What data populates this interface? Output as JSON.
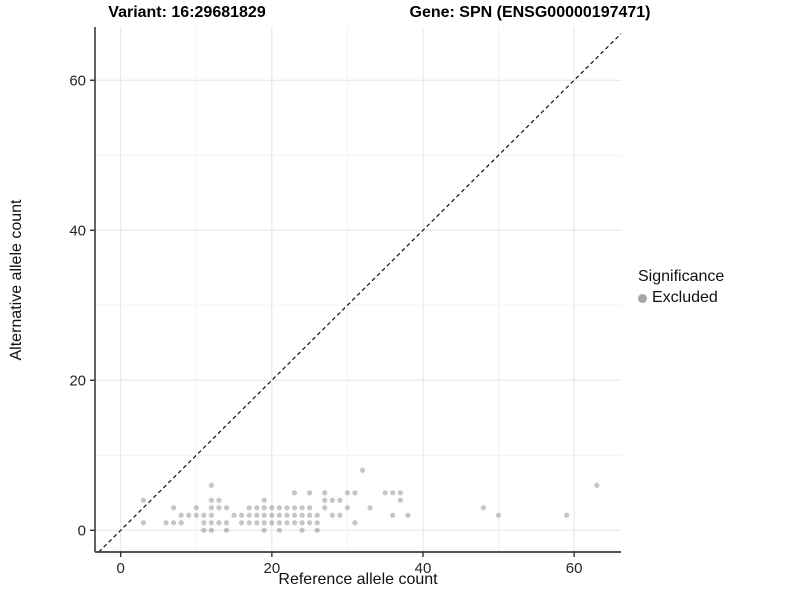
{
  "titles": {
    "variant": "Variant: 16:29681829",
    "gene": "Gene: SPN (ENSG00000197471)"
  },
  "legend": {
    "title": "Significance",
    "items": [
      {
        "label": "Excluded",
        "color": "#a6a6a6"
      }
    ]
  },
  "chart_data": {
    "type": "scatter",
    "title_left": "Variant: 16:29681829",
    "title_right": "Gene: SPN (ENSG00000197471)",
    "xlabel": "Reference allele count",
    "ylabel": "Alternative allele count",
    "xlim": [
      -3.4,
      66.2
    ],
    "ylim": [
      -2.9,
      67.1
    ],
    "x_major_ticks": [
      0,
      20,
      40,
      60
    ],
    "x_minor_ticks": [
      10,
      30,
      50
    ],
    "y_major_ticks": [
      0,
      20,
      40,
      60
    ],
    "y_minor_ticks": [
      10,
      30,
      50
    ],
    "grid": true,
    "legend_position": "right",
    "identity_line": {
      "equation": "y = x",
      "style": "dashed",
      "color": "#111111"
    },
    "point_color": "rgba(51,51,51,0.28)",
    "point_radius": 2.6,
    "major_grid_color": "#e5e5e5",
    "minor_grid_color": "#f2f2f2",
    "axis_line_color": "#3c3c3c",
    "tick_label_color": "#262626",
    "series": [
      {
        "name": "Excluded",
        "points": [
          [
            3,
            4
          ],
          [
            3,
            1
          ],
          [
            6,
            1
          ],
          [
            7,
            1
          ],
          [
            7,
            3
          ],
          [
            8,
            2
          ],
          [
            8,
            1
          ],
          [
            9,
            2
          ],
          [
            10,
            3
          ],
          [
            10,
            2
          ],
          [
            11,
            2
          ],
          [
            11,
            1
          ],
          [
            11,
            0
          ],
          [
            12,
            6
          ],
          [
            12,
            4
          ],
          [
            12,
            3
          ],
          [
            12,
            2
          ],
          [
            12,
            1
          ],
          [
            12,
            0
          ],
          [
            13,
            4
          ],
          [
            13,
            3
          ],
          [
            13,
            1
          ],
          [
            14,
            3
          ],
          [
            14,
            1
          ],
          [
            14,
            0
          ],
          [
            15,
            2
          ],
          [
            16,
            2
          ],
          [
            16,
            1
          ],
          [
            17,
            3
          ],
          [
            17,
            2
          ],
          [
            17,
            1
          ],
          [
            18,
            3
          ],
          [
            18,
            2
          ],
          [
            18,
            1
          ],
          [
            19,
            4
          ],
          [
            19,
            3
          ],
          [
            19,
            2
          ],
          [
            19,
            1
          ],
          [
            19,
            0
          ],
          [
            20,
            3
          ],
          [
            20,
            2
          ],
          [
            20,
            1
          ],
          [
            21,
            3
          ],
          [
            21,
            2
          ],
          [
            21,
            1
          ],
          [
            21,
            0
          ],
          [
            22,
            3
          ],
          [
            22,
            2
          ],
          [
            22,
            1
          ],
          [
            23,
            5
          ],
          [
            23,
            3
          ],
          [
            23,
            2
          ],
          [
            23,
            1
          ],
          [
            24,
            3
          ],
          [
            24,
            2
          ],
          [
            24,
            1
          ],
          [
            24,
            0
          ],
          [
            25,
            5
          ],
          [
            25,
            3
          ],
          [
            25,
            2
          ],
          [
            25,
            1
          ],
          [
            26,
            2
          ],
          [
            26,
            1
          ],
          [
            26,
            0
          ],
          [
            27,
            5
          ],
          [
            27,
            4
          ],
          [
            27,
            3
          ],
          [
            28,
            4
          ],
          [
            28,
            2
          ],
          [
            29,
            4
          ],
          [
            29,
            2
          ],
          [
            30,
            5
          ],
          [
            30,
            3
          ],
          [
            31,
            5
          ],
          [
            31,
            1
          ],
          [
            32,
            8
          ],
          [
            33,
            3
          ],
          [
            35,
            5
          ],
          [
            36,
            5
          ],
          [
            36,
            2
          ],
          [
            37,
            5
          ],
          [
            37,
            4
          ],
          [
            38,
            2
          ],
          [
            48,
            3
          ],
          [
            50,
            2
          ],
          [
            59,
            2
          ],
          [
            63,
            6
          ]
        ]
      }
    ]
  }
}
